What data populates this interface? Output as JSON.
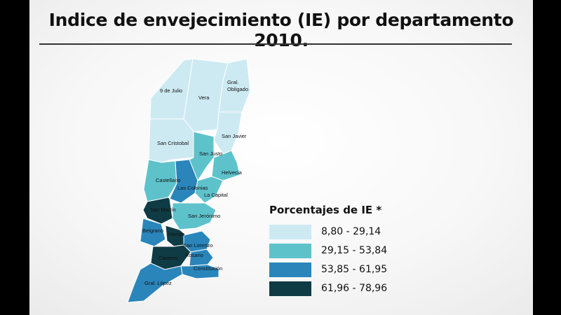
{
  "title": "Indice de envejecimiento (IE) por departamento 2010.",
  "colors": {
    "class1": "#cdeaf3",
    "class2": "#5ec2cb",
    "class3": "#2a85bb",
    "class4": "#0f3b44"
  },
  "departments": [
    {
      "name": "9 de Julio",
      "class": 1
    },
    {
      "name": "Vera",
      "class": 1
    },
    {
      "name": "Gral. Obligado",
      "class": 1
    },
    {
      "name": "San Javier",
      "class": 1
    },
    {
      "name": "San Cristobal",
      "class": 1
    },
    {
      "name": "San Justo",
      "class": 2
    },
    {
      "name": "Castellano",
      "class": 2
    },
    {
      "name": "Las Colonias",
      "class": 3
    },
    {
      "name": "Helvecia",
      "class": 2
    },
    {
      "name": "La Capital",
      "class": 2
    },
    {
      "name": "San Martín",
      "class": 4
    },
    {
      "name": "San Jerónimo",
      "class": 2
    },
    {
      "name": "Belgrano",
      "class": 3
    },
    {
      "name": "Iriondo",
      "class": 4
    },
    {
      "name": "San Lorenzo",
      "class": 3
    },
    {
      "name": "Caseros",
      "class": 4
    },
    {
      "name": "Rosario",
      "class": 3
    },
    {
      "name": "Constitución",
      "class": 3
    },
    {
      "name": "Gral. López",
      "class": 3
    }
  ],
  "legend": {
    "title": "Porcentajes de IE *",
    "items": [
      {
        "label": "8,80 - 29,14",
        "color": "#cdeaf3"
      },
      {
        "label": "29,15 - 53,84",
        "color": "#5ec2cb"
      },
      {
        "label": "53,85 - 61,95",
        "color": "#2a85bb"
      },
      {
        "label": "61,96 - 78,96",
        "color": "#0f3b44"
      }
    ]
  }
}
